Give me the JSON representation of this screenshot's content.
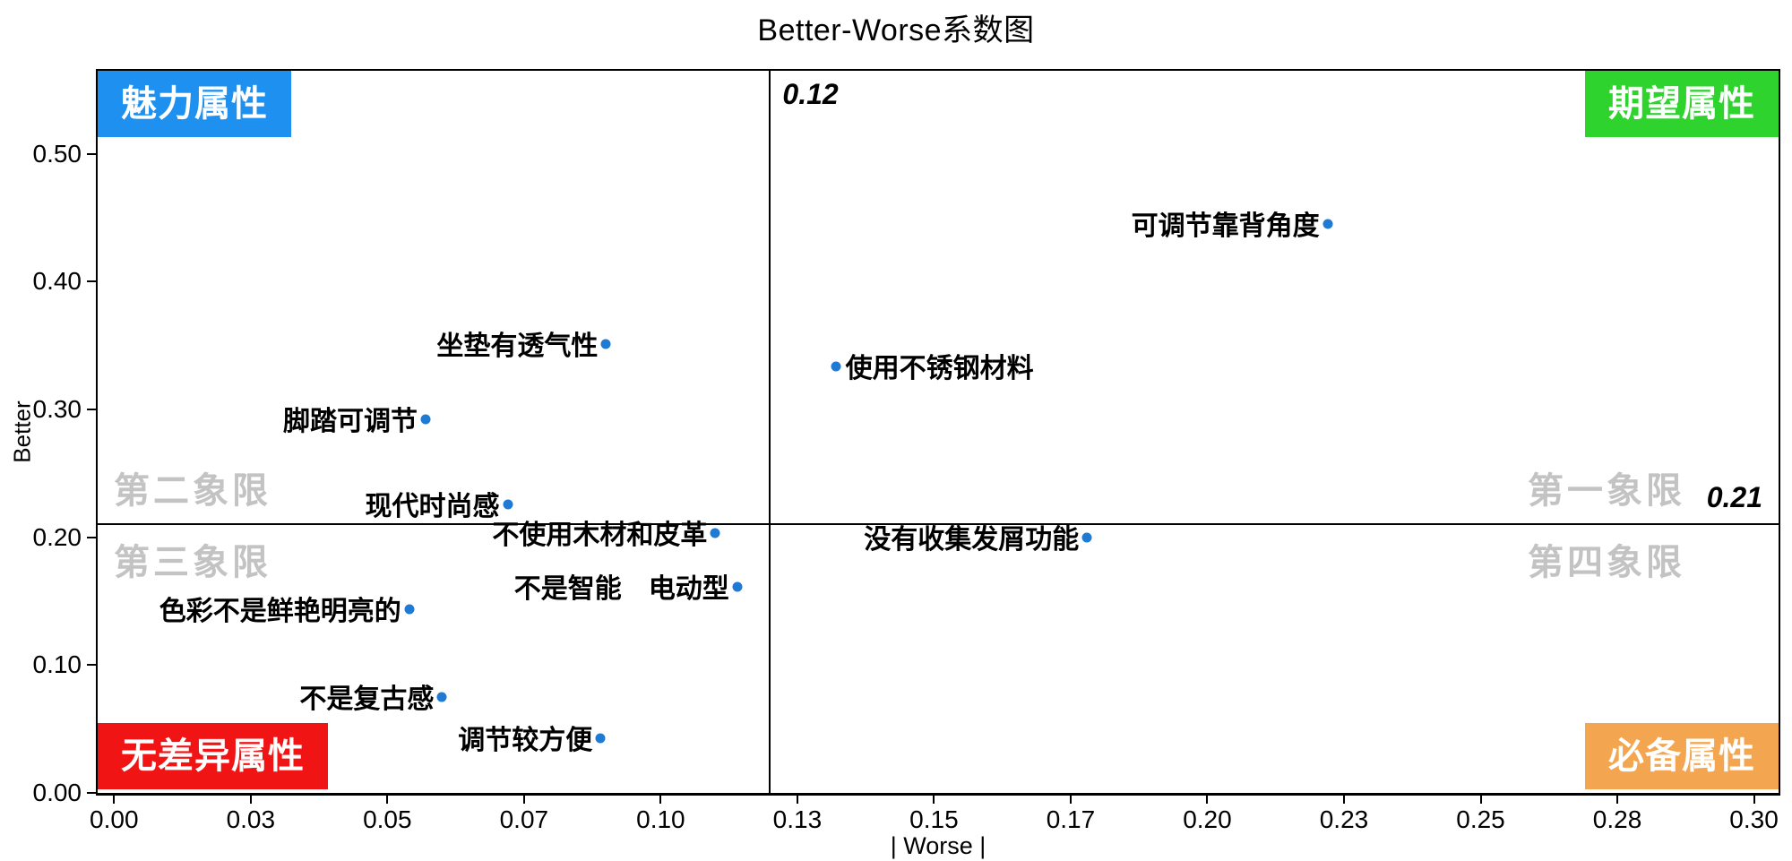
{
  "chart_data": {
    "type": "scatter",
    "title": "Better-Worse系数图",
    "xlabel": "| Worse |",
    "ylabel": "Better",
    "xlim": [
      0,
      0.3
    ],
    "ylim": [
      0,
      0.5
    ],
    "grid": false,
    "point_color": "#1F7AD4",
    "x_ticks": [
      {
        "v": 0.0,
        "label": "0.00"
      },
      {
        "v": 0.025,
        "label": "0.03"
      },
      {
        "v": 0.05,
        "label": "0.05"
      },
      {
        "v": 0.075,
        "label": "0.07"
      },
      {
        "v": 0.1,
        "label": "0.10"
      },
      {
        "v": 0.125,
        "label": "0.13"
      },
      {
        "v": 0.15,
        "label": "0.15"
      },
      {
        "v": 0.175,
        "label": "0.17"
      },
      {
        "v": 0.2,
        "label": "0.20"
      },
      {
        "v": 0.225,
        "label": "0.23"
      },
      {
        "v": 0.25,
        "label": "0.25"
      },
      {
        "v": 0.275,
        "label": "0.28"
      },
      {
        "v": 0.3,
        "label": "0.30"
      }
    ],
    "y_ticks": [
      {
        "v": 0.0,
        "label": "0.00"
      },
      {
        "v": 0.1,
        "label": "0.10"
      },
      {
        "v": 0.2,
        "label": "0.20"
      },
      {
        "v": 0.3,
        "label": "0.30"
      },
      {
        "v": 0.4,
        "label": "0.40"
      },
      {
        "v": 0.5,
        "label": "0.50"
      }
    ],
    "reference_lines": {
      "vertical": {
        "value": 0.12,
        "label": "0.12"
      },
      "horizontal": {
        "value": 0.21,
        "label": "0.21"
      }
    },
    "points": [
      {
        "label": "可调节靠背角度",
        "worse": 0.222,
        "better": 0.445,
        "label_side": "left"
      },
      {
        "label": "坐垫有透气性",
        "worse": 0.09,
        "better": 0.351,
        "label_side": "left"
      },
      {
        "label": "使用不锈钢材料",
        "worse": 0.132,
        "better": 0.334,
        "label_side": "right"
      },
      {
        "label": "脚踏可调节",
        "worse": 0.057,
        "better": 0.292,
        "label_side": "left"
      },
      {
        "label": "现代时尚感",
        "worse": 0.072,
        "better": 0.226,
        "label_side": "left"
      },
      {
        "label": "不使用木材和皮革",
        "worse": 0.11,
        "better": 0.203,
        "label_side": "left"
      },
      {
        "label": "没有收集发屑功能",
        "worse": 0.178,
        "better": 0.2,
        "label_side": "left"
      },
      {
        "label": "不是智能　电动型",
        "worse": 0.114,
        "better": 0.161,
        "label_side": "left"
      },
      {
        "label": "色彩不是鲜艳明亮的",
        "worse": 0.054,
        "better": 0.144,
        "label_side": "left"
      },
      {
        "label": "不是复古感",
        "worse": 0.06,
        "better": 0.075,
        "label_side": "left"
      },
      {
        "label": "调节较方便",
        "worse": 0.089,
        "better": 0.043,
        "label_side": "left"
      }
    ],
    "quadrant_badges": [
      {
        "text": "魅力属性",
        "corner": "top-left",
        "color": "#1E90F0"
      },
      {
        "text": "期望属性",
        "corner": "top-right",
        "color": "#2ED32E"
      },
      {
        "text": "无差异属性",
        "corner": "bottom-left",
        "color": "#F01414"
      },
      {
        "text": "必备属性",
        "corner": "bottom-right",
        "color": "#F3A64F"
      }
    ],
    "quadrant_labels": [
      {
        "text": "第二象限",
        "pos": "left-above"
      },
      {
        "text": "第一象限",
        "pos": "right-above"
      },
      {
        "text": "第三象限",
        "pos": "left-below"
      },
      {
        "text": "第四象限",
        "pos": "right-below"
      }
    ],
    "quadrant_label_color": "#C3C3C3"
  }
}
